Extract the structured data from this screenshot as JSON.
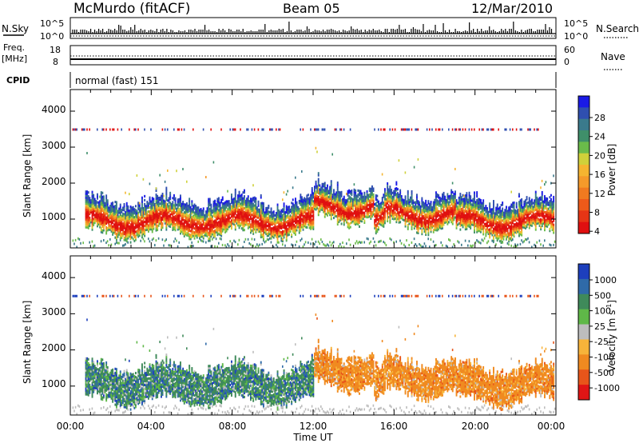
{
  "header": {
    "station": "McMurdo (fitACF)",
    "beam": "Beam 05",
    "date": "12/Mar/2010"
  },
  "top_panels": {
    "nsky_label": "N.Sky",
    "nsky_ticks": [
      "10^5",
      "10^0"
    ],
    "nsearch_label": "N.Search",
    "nsearch_ticks": [
      "10^5",
      "10^0"
    ],
    "freq_label_1": "Freq.",
    "freq_label_2": "[MHz]",
    "freq_ticks": [
      "18",
      "8"
    ],
    "nave_label": "Nave",
    "nave_ticks": [
      "60",
      "0"
    ],
    "cpid_label": "CPID",
    "cpid_value": "normal (fast) 151"
  },
  "chart_data": [
    {
      "type": "heatmap",
      "name": "power",
      "ylabel": "Slant Range [km]",
      "y_ticks": [
        "4000",
        "3000",
        "2000",
        "1000"
      ],
      "ylim": [
        200,
        4600
      ],
      "xlim_hours": [
        0,
        24
      ],
      "colorbar": {
        "label": "Power [dB]",
        "ticks": [
          "28",
          "24",
          "20",
          "16",
          "12",
          "8",
          "4"
        ],
        "colors": [
          "#1a1ae6",
          "#2f4fb0",
          "#3a7a8c",
          "#3f8f6a",
          "#6abb4a",
          "#cfd13a",
          "#f5b530",
          "#f59a2a",
          "#f07a20",
          "#ee5a1a",
          "#e63515",
          "#e01010"
        ]
      }
    },
    {
      "type": "heatmap",
      "name": "velocity",
      "ylabel": "Slant Range [km]",
      "y_ticks": [
        "4000",
        "3000",
        "2000",
        "1000"
      ],
      "ylim": [
        200,
        4600
      ],
      "xlim_hours": [
        0,
        24
      ],
      "x_ticks": [
        "00:00",
        "04:00",
        "08:00",
        "12:00",
        "16:00",
        "20:00",
        "00:00"
      ],
      "xlabel": "Time UT",
      "colorbar": {
        "label": "Velocity [m s",
        "label_sup": "-1",
        "label_end": "]",
        "ticks": [
          "1000",
          "500",
          "100",
          "25",
          "-25",
          "-100",
          "-500",
          "-1000"
        ],
        "colors": [
          "#1d3fbd",
          "#2f6aa8",
          "#3f8a5a",
          "#5fb848",
          "#bdbdbd",
          "#f7b43a",
          "#f08a20",
          "#e8551a",
          "#e01515"
        ]
      }
    }
  ]
}
